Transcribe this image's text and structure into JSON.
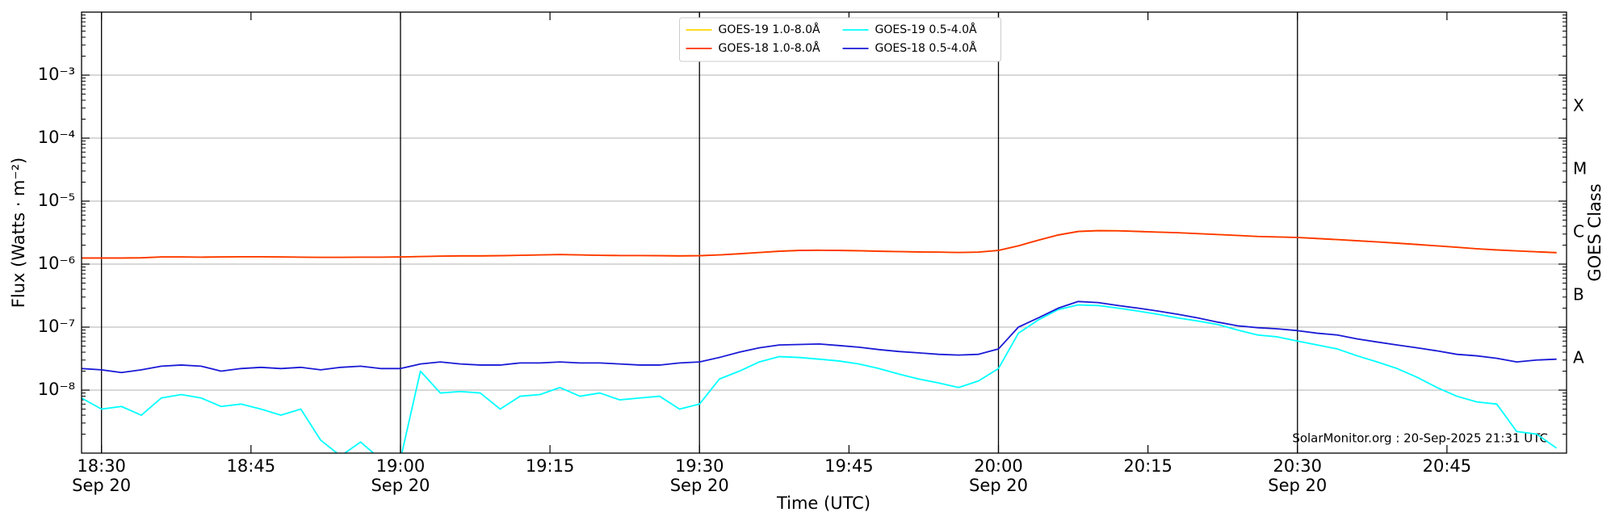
{
  "chart_data": {
    "type": "line",
    "xlabel": "Time (UTC)",
    "ylabel": "Flux (Watts · m⁻²)",
    "y2label": "GOES Class",
    "annotation": "SolarMonitor.org : 20-Sep-2025 21:31 UTC",
    "log_y": true,
    "grid": true,
    "legend": "upper center",
    "legend_ncol": 2,
    "xlim": [
      "Sep 20 18:28",
      "Sep 20 20:57"
    ],
    "xticks": [
      {
        "value": "Sep 20 18:30",
        "label": "18:30\nSep 20"
      },
      {
        "value": "Sep 20 18:45",
        "label": "18:45"
      },
      {
        "value": "Sep 20 19:00",
        "label": "19:00\nSep 20"
      },
      {
        "value": "Sep 20 19:15",
        "label": "19:15"
      },
      {
        "value": "Sep 20 19:30",
        "label": "19:30\nSep 20"
      },
      {
        "value": "Sep 20 19:45",
        "label": "19:45"
      },
      {
        "value": "Sep 20 20:00",
        "label": "20:00\nSep 20"
      },
      {
        "value": "Sep 20 20:15",
        "label": "20:15"
      },
      {
        "value": "Sep 20 20:30",
        "label": "20:30\nSep 20"
      },
      {
        "value": "Sep 20 20:45",
        "label": "20:45"
      }
    ],
    "vlines": [
      "Sep 20 18:30",
      "Sep 20 19:00",
      "Sep 20 19:30",
      "Sep 20 20:00",
      "Sep 20 20:30"
    ],
    "ylim": [
      1e-09,
      0.01
    ],
    "yticks": [
      {
        "value": 1e-08,
        "label": "10⁻⁸"
      },
      {
        "value": 1e-07,
        "label": "10⁻⁷"
      },
      {
        "value": 1e-06,
        "label": "10⁻⁶"
      },
      {
        "value": 1e-05,
        "label": "10⁻⁵"
      },
      {
        "value": 0.0001,
        "label": "10⁻⁴"
      },
      {
        "value": 0.001,
        "label": "10⁻³"
      }
    ],
    "class_ticks": [
      {
        "value": 1e-08,
        "label": "A"
      },
      {
        "value": 1e-07,
        "label": "B"
      },
      {
        "value": 1e-06,
        "label": "C"
      },
      {
        "value": 1e-05,
        "label": "M"
      },
      {
        "value": 0.0001,
        "label": "X"
      }
    ],
    "x": [
      "Sep 20 18:28",
      "Sep 20 18:30",
      "Sep 20 18:32",
      "Sep 20 18:34",
      "Sep 20 18:36",
      "Sep 20 18:38",
      "Sep 20 18:40",
      "Sep 20 18:42",
      "Sep 20 18:44",
      "Sep 20 18:46",
      "Sep 20 18:48",
      "Sep 20 18:50",
      "Sep 20 18:52",
      "Sep 20 18:54",
      "Sep 20 18:56",
      "Sep 20 18:58",
      "Sep 20 19:00",
      "Sep 20 19:02",
      "Sep 20 19:04",
      "Sep 20 19:06",
      "Sep 20 19:08",
      "Sep 20 19:10",
      "Sep 20 19:12",
      "Sep 20 19:14",
      "Sep 20 19:16",
      "Sep 20 19:18",
      "Sep 20 19:20",
      "Sep 20 19:22",
      "Sep 20 19:24",
      "Sep 20 19:26",
      "Sep 20 19:28",
      "Sep 20 19:30",
      "Sep 20 19:32",
      "Sep 20 19:34",
      "Sep 20 19:36",
      "Sep 20 19:38",
      "Sep 20 19:40",
      "Sep 20 19:42",
      "Sep 20 19:44",
      "Sep 20 19:46",
      "Sep 20 19:48",
      "Sep 20 19:50",
      "Sep 20 19:52",
      "Sep 20 19:54",
      "Sep 20 19:56",
      "Sep 20 19:58",
      "Sep 20 20:00",
      "Sep 20 20:02",
      "Sep 20 20:04",
      "Sep 20 20:06",
      "Sep 20 20:08",
      "Sep 20 20:10",
      "Sep 20 20:12",
      "Sep 20 20:14",
      "Sep 20 20:16",
      "Sep 20 20:18",
      "Sep 20 20:20",
      "Sep 20 20:22",
      "Sep 20 20:24",
      "Sep 20 20:26",
      "Sep 20 20:28",
      "Sep 20 20:30",
      "Sep 20 20:32",
      "Sep 20 20:34",
      "Sep 20 20:36",
      "Sep 20 20:38",
      "Sep 20 20:40",
      "Sep 20 20:42",
      "Sep 20 20:44",
      "Sep 20 20:46",
      "Sep 20 20:48",
      "Sep 20 20:50",
      "Sep 20 20:52",
      "Sep 20 20:54",
      "Sep 20 20:56"
    ],
    "series": [
      {
        "name": "GOES-19 1.0-8.0Å",
        "color": "#ffd700",
        "values": [
          1.25e-06,
          1.25e-06,
          1.25e-06,
          1.26e-06,
          1.3e-06,
          1.3e-06,
          1.29e-06,
          1.3e-06,
          1.31e-06,
          1.31e-06,
          1.3e-06,
          1.29e-06,
          1.28e-06,
          1.28e-06,
          1.29e-06,
          1.29e-06,
          1.3e-06,
          1.32e-06,
          1.34e-06,
          1.35e-06,
          1.35e-06,
          1.36e-06,
          1.38e-06,
          1.4e-06,
          1.42e-06,
          1.4e-06,
          1.38e-06,
          1.37e-06,
          1.37e-06,
          1.36e-06,
          1.35e-06,
          1.36e-06,
          1.4e-06,
          1.46e-06,
          1.53e-06,
          1.6e-06,
          1.65e-06,
          1.66e-06,
          1.65e-06,
          1.63e-06,
          1.6e-06,
          1.58e-06,
          1.56e-06,
          1.55e-06,
          1.53e-06,
          1.55e-06,
          1.65e-06,
          1.95e-06,
          2.4e-06,
          2.9e-06,
          3.3e-06,
          3.4e-06,
          3.38e-06,
          3.3e-06,
          3.22e-06,
          3.15e-06,
          3.05e-06,
          2.95e-06,
          2.85e-06,
          2.75e-06,
          2.7e-06,
          2.65e-06,
          2.55e-06,
          2.45e-06,
          2.35e-06,
          2.25e-06,
          2.15e-06,
          2.05e-06,
          1.95e-06,
          1.85e-06,
          1.75e-06,
          1.68e-06,
          1.62e-06,
          1.57e-06,
          1.52e-06
        ]
      },
      {
        "name": "GOES-18 1.0-8.0Å",
        "color": "#ff3300",
        "values": [
          1.25e-06,
          1.25e-06,
          1.25e-06,
          1.26e-06,
          1.3e-06,
          1.3e-06,
          1.29e-06,
          1.3e-06,
          1.31e-06,
          1.31e-06,
          1.3e-06,
          1.29e-06,
          1.28e-06,
          1.28e-06,
          1.29e-06,
          1.29e-06,
          1.3e-06,
          1.32e-06,
          1.34e-06,
          1.35e-06,
          1.35e-06,
          1.36e-06,
          1.38e-06,
          1.4e-06,
          1.42e-06,
          1.4e-06,
          1.38e-06,
          1.37e-06,
          1.37e-06,
          1.36e-06,
          1.35e-06,
          1.36e-06,
          1.4e-06,
          1.46e-06,
          1.53e-06,
          1.6e-06,
          1.65e-06,
          1.66e-06,
          1.65e-06,
          1.63e-06,
          1.6e-06,
          1.58e-06,
          1.56e-06,
          1.55e-06,
          1.53e-06,
          1.55e-06,
          1.65e-06,
          1.95e-06,
          2.4e-06,
          2.9e-06,
          3.3e-06,
          3.4e-06,
          3.38e-06,
          3.3e-06,
          3.22e-06,
          3.15e-06,
          3.05e-06,
          2.95e-06,
          2.85e-06,
          2.75e-06,
          2.7e-06,
          2.65e-06,
          2.55e-06,
          2.45e-06,
          2.35e-06,
          2.25e-06,
          2.15e-06,
          2.05e-06,
          1.95e-06,
          1.85e-06,
          1.75e-06,
          1.68e-06,
          1.62e-06,
          1.57e-06,
          1.52e-06
        ]
      },
      {
        "name": "GOES-19 0.5-4.0Å",
        "color": "#00ffff",
        "values": [
          7.5e-09,
          5e-09,
          5.5e-09,
          4e-09,
          7.5e-09,
          8.5e-09,
          7.5e-09,
          5.5e-09,
          6e-09,
          5e-09,
          4e-09,
          5e-09,
          1.6e-09,
          9e-10,
          1.5e-09,
          8e-10,
          8e-10,
          2e-08,
          9e-09,
          9.5e-09,
          9e-09,
          5e-09,
          8e-09,
          8.5e-09,
          1.1e-08,
          8e-09,
          9e-09,
          7e-09,
          7.5e-09,
          8e-09,
          5e-09,
          6e-09,
          1.5e-08,
          2e-08,
          2.8e-08,
          3.4e-08,
          3.3e-08,
          3.1e-08,
          2.9e-08,
          2.6e-08,
          2.2e-08,
          1.8e-08,
          1.5e-08,
          1.3e-08,
          1.1e-08,
          1.4e-08,
          2.2e-08,
          8e-08,
          1.3e-07,
          1.9e-07,
          2.25e-07,
          2.2e-07,
          2e-07,
          1.8e-07,
          1.6e-07,
          1.4e-07,
          1.25e-07,
          1.1e-07,
          9e-08,
          7.5e-08,
          7e-08,
          6e-08,
          5.2e-08,
          4.5e-08,
          3.5e-08,
          2.8e-08,
          2.2e-08,
          1.6e-08,
          1.1e-08,
          8e-09,
          6.5e-09,
          6e-09,
          2.2e-09,
          2e-09,
          1.2e-09
        ]
      },
      {
        "name": "GOES-18 0.5-4.0Å",
        "color": "#1a1ad6",
        "values": [
          2.2e-08,
          2.1e-08,
          1.9e-08,
          2.1e-08,
          2.4e-08,
          2.5e-08,
          2.4e-08,
          2e-08,
          2.2e-08,
          2.3e-08,
          2.2e-08,
          2.3e-08,
          2.1e-08,
          2.3e-08,
          2.4e-08,
          2.2e-08,
          2.2e-08,
          2.6e-08,
          2.8e-08,
          2.6e-08,
          2.5e-08,
          2.5e-08,
          2.7e-08,
          2.7e-08,
          2.8e-08,
          2.7e-08,
          2.7e-08,
          2.6e-08,
          2.5e-08,
          2.5e-08,
          2.7e-08,
          2.8e-08,
          3.3e-08,
          4e-08,
          4.7e-08,
          5.2e-08,
          5.3e-08,
          5.4e-08,
          5.1e-08,
          4.8e-08,
          4.4e-08,
          4.1e-08,
          3.9e-08,
          3.7e-08,
          3.6e-08,
          3.7e-08,
          4.5e-08,
          1e-07,
          1.4e-07,
          2e-07,
          2.55e-07,
          2.45e-07,
          2.2e-07,
          2e-07,
          1.8e-07,
          1.6e-07,
          1.4e-07,
          1.2e-07,
          1.05e-07,
          9.8e-08,
          9.4e-08,
          8.8e-08,
          8e-08,
          7.5e-08,
          6.5e-08,
          5.8e-08,
          5.2e-08,
          4.7e-08,
          4.2e-08,
          3.7e-08,
          3.5e-08,
          3.2e-08,
          2.8e-08,
          3e-08,
          3.1e-08
        ]
      }
    ]
  }
}
